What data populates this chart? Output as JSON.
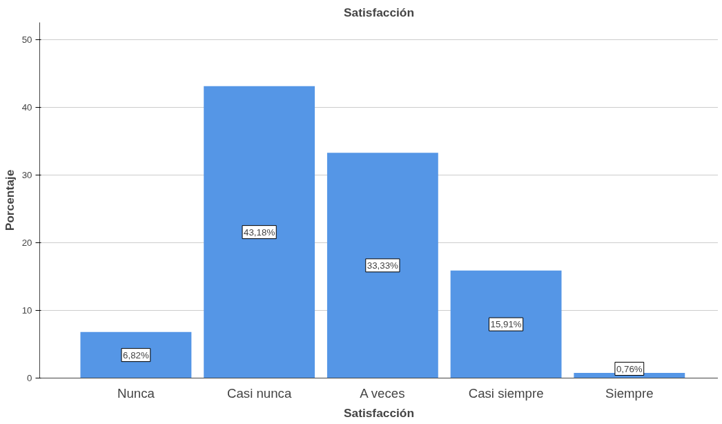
{
  "chart_data": {
    "type": "bar",
    "title": "Satisfacción",
    "xlabel": "Satisfacción",
    "ylabel": "Porcentaje",
    "categories": [
      "Nunca",
      "Casi nunca",
      "A veces",
      "Casi siempre",
      "Siempre"
    ],
    "values": [
      6.82,
      43.18,
      33.33,
      15.91,
      0.76
    ],
    "value_labels": [
      "6,82%",
      "43,18%",
      "33,33%",
      "15,91%",
      "0,76%"
    ],
    "color": "#5596e6",
    "ylim": [
      0,
      52.6
    ],
    "yticks": [
      0,
      10,
      20,
      30,
      40,
      50
    ],
    "grid": "y"
  }
}
